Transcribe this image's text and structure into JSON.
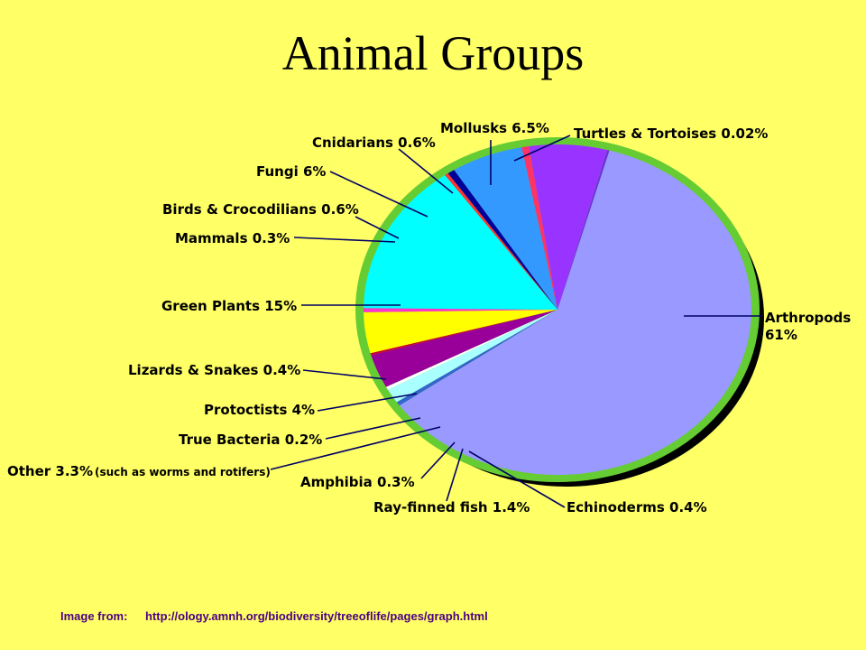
{
  "page": {
    "title": "Animal Groups",
    "source_prefix": "Image from:",
    "source_url": "http://ology.amnh.org/biodiversity/treeoflife/pages/graph.html"
  },
  "chart_data": {
    "type": "pie",
    "title": "Animal Groups",
    "units": "%",
    "slices": [
      {
        "name": "Arthropods",
        "value": 61,
        "label": "Arthropods",
        "value_text": "61%",
        "color": "#9999FF"
      },
      {
        "name": "Echinoderms",
        "value": 0.4,
        "label": "Echinoderms 0.4%",
        "color": "#3366CC"
      },
      {
        "name": "Ray-finned fish",
        "value": 1.4,
        "label": "Ray-finned fish 1.4%",
        "color": "#AAFFFF"
      },
      {
        "name": "Amphibia",
        "value": 0.3,
        "label": "Amphibia 0.3%",
        "color": "#FFFFFF"
      },
      {
        "name": "Other",
        "value": 3.3,
        "label": "Other 3.3%",
        "note": "(such as worms and rotifers)",
        "color": "#990099"
      },
      {
        "name": "True Bacteria",
        "value": 0.2,
        "label": "True Bacteria 0.2%",
        "color": "#CC0033"
      },
      {
        "name": "Protoctists",
        "value": 4,
        "label": "Protoctists 4%",
        "color": "#FFFF00"
      },
      {
        "name": "Lizards & Snakes",
        "value": 0.4,
        "label": "Lizards & Snakes 0.4%",
        "color": "#FF33CC"
      },
      {
        "name": "Green Plants",
        "value": 15,
        "label": "Green Plants 15%",
        "color": "#00FFFF"
      },
      {
        "name": "Mammals",
        "value": 0.3,
        "label": "Mammals 0.3%",
        "color": "#FF3333"
      },
      {
        "name": "Birds & Crocodilians",
        "value": 0.6,
        "label": "Birds & Crocodilians 0.6%",
        "color": "#000099"
      },
      {
        "name": "Fungi",
        "value": 6,
        "label": "Fungi 6%",
        "color": "#3399FF"
      },
      {
        "name": "Cnidarians",
        "value": 0.6,
        "label": "Cnidarians 0.6%",
        "color": "#FF3366"
      },
      {
        "name": "Mollusks",
        "value": 6.5,
        "label": "Mollusks 6.5%",
        "color": "#9933FF"
      },
      {
        "name": "Turtles & Tortoises",
        "value": 0.02,
        "label": "Turtles & Tortoises 0.02%",
        "color": "#6633CC"
      }
    ],
    "legend": "none",
    "shadow_color": "#000000",
    "rim_color": "#66CC33"
  }
}
